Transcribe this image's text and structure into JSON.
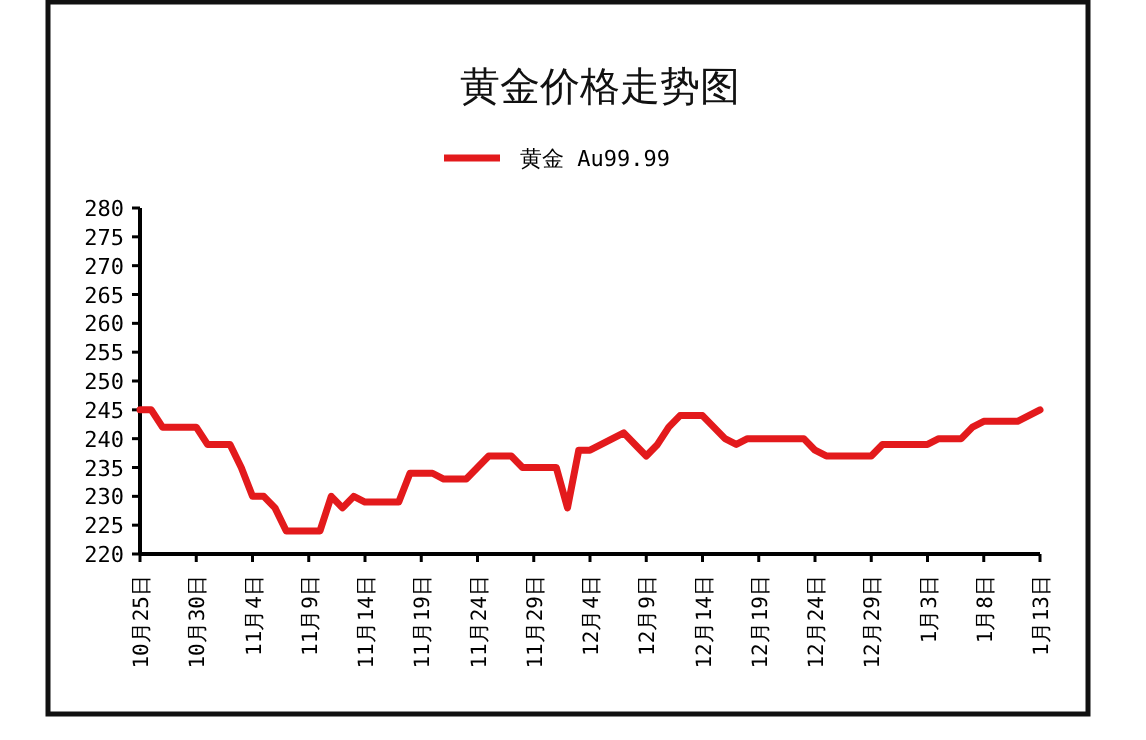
{
  "chart_data": {
    "type": "line",
    "title": "黄金价格走势图",
    "legend": "top",
    "categories": [
      "10月25日",
      null,
      null,
      null,
      null,
      "10月30日",
      null,
      null,
      null,
      null,
      "11月4日",
      null,
      null,
      null,
      null,
      "11月9日",
      null,
      null,
      null,
      null,
      "11月14日",
      null,
      null,
      null,
      null,
      "11月19日",
      null,
      null,
      null,
      null,
      "11月24日",
      null,
      null,
      null,
      null,
      "11月29日",
      null,
      null,
      null,
      null,
      "12月4日",
      null,
      null,
      null,
      null,
      "12月9日",
      null,
      null,
      null,
      null,
      "12月14日",
      null,
      null,
      null,
      null,
      "12月19日",
      null,
      null,
      null,
      null,
      "12月24日",
      null,
      null,
      null,
      null,
      "12月29日",
      null,
      null,
      null,
      null,
      "1月3日",
      null,
      null,
      null,
      null,
      "1月8日",
      null,
      null,
      null,
      null,
      "1月13日"
    ],
    "series": [
      {
        "name": "黄金 Au99.99",
        "color": "#e31a1c",
        "values": [
          245,
          245,
          242,
          242,
          242,
          242,
          239,
          239,
          239,
          235,
          230,
          230,
          228,
          224,
          224,
          224,
          224,
          230,
          228,
          230,
          229,
          229,
          229,
          229,
          234,
          234,
          234,
          233,
          233,
          233,
          235,
          237,
          237,
          237,
          235,
          235,
          235,
          235,
          228,
          238,
          238,
          239,
          240,
          241,
          239,
          237,
          239,
          242,
          244,
          244,
          244,
          242,
          240,
          239,
          240,
          240,
          240,
          240,
          240,
          240,
          238,
          237,
          237,
          237,
          237,
          237,
          239,
          239,
          239,
          239,
          239,
          240,
          240,
          240,
          242,
          243,
          243,
          243,
          243,
          244,
          245
        ]
      }
    ],
    "ylim": [
      220,
      280
    ],
    "yticks": [
      220,
      225,
      230,
      235,
      240,
      245,
      250,
      255,
      260,
      265,
      270,
      275,
      280
    ],
    "grid": false,
    "marker": "none",
    "line_style": "solid"
  }
}
